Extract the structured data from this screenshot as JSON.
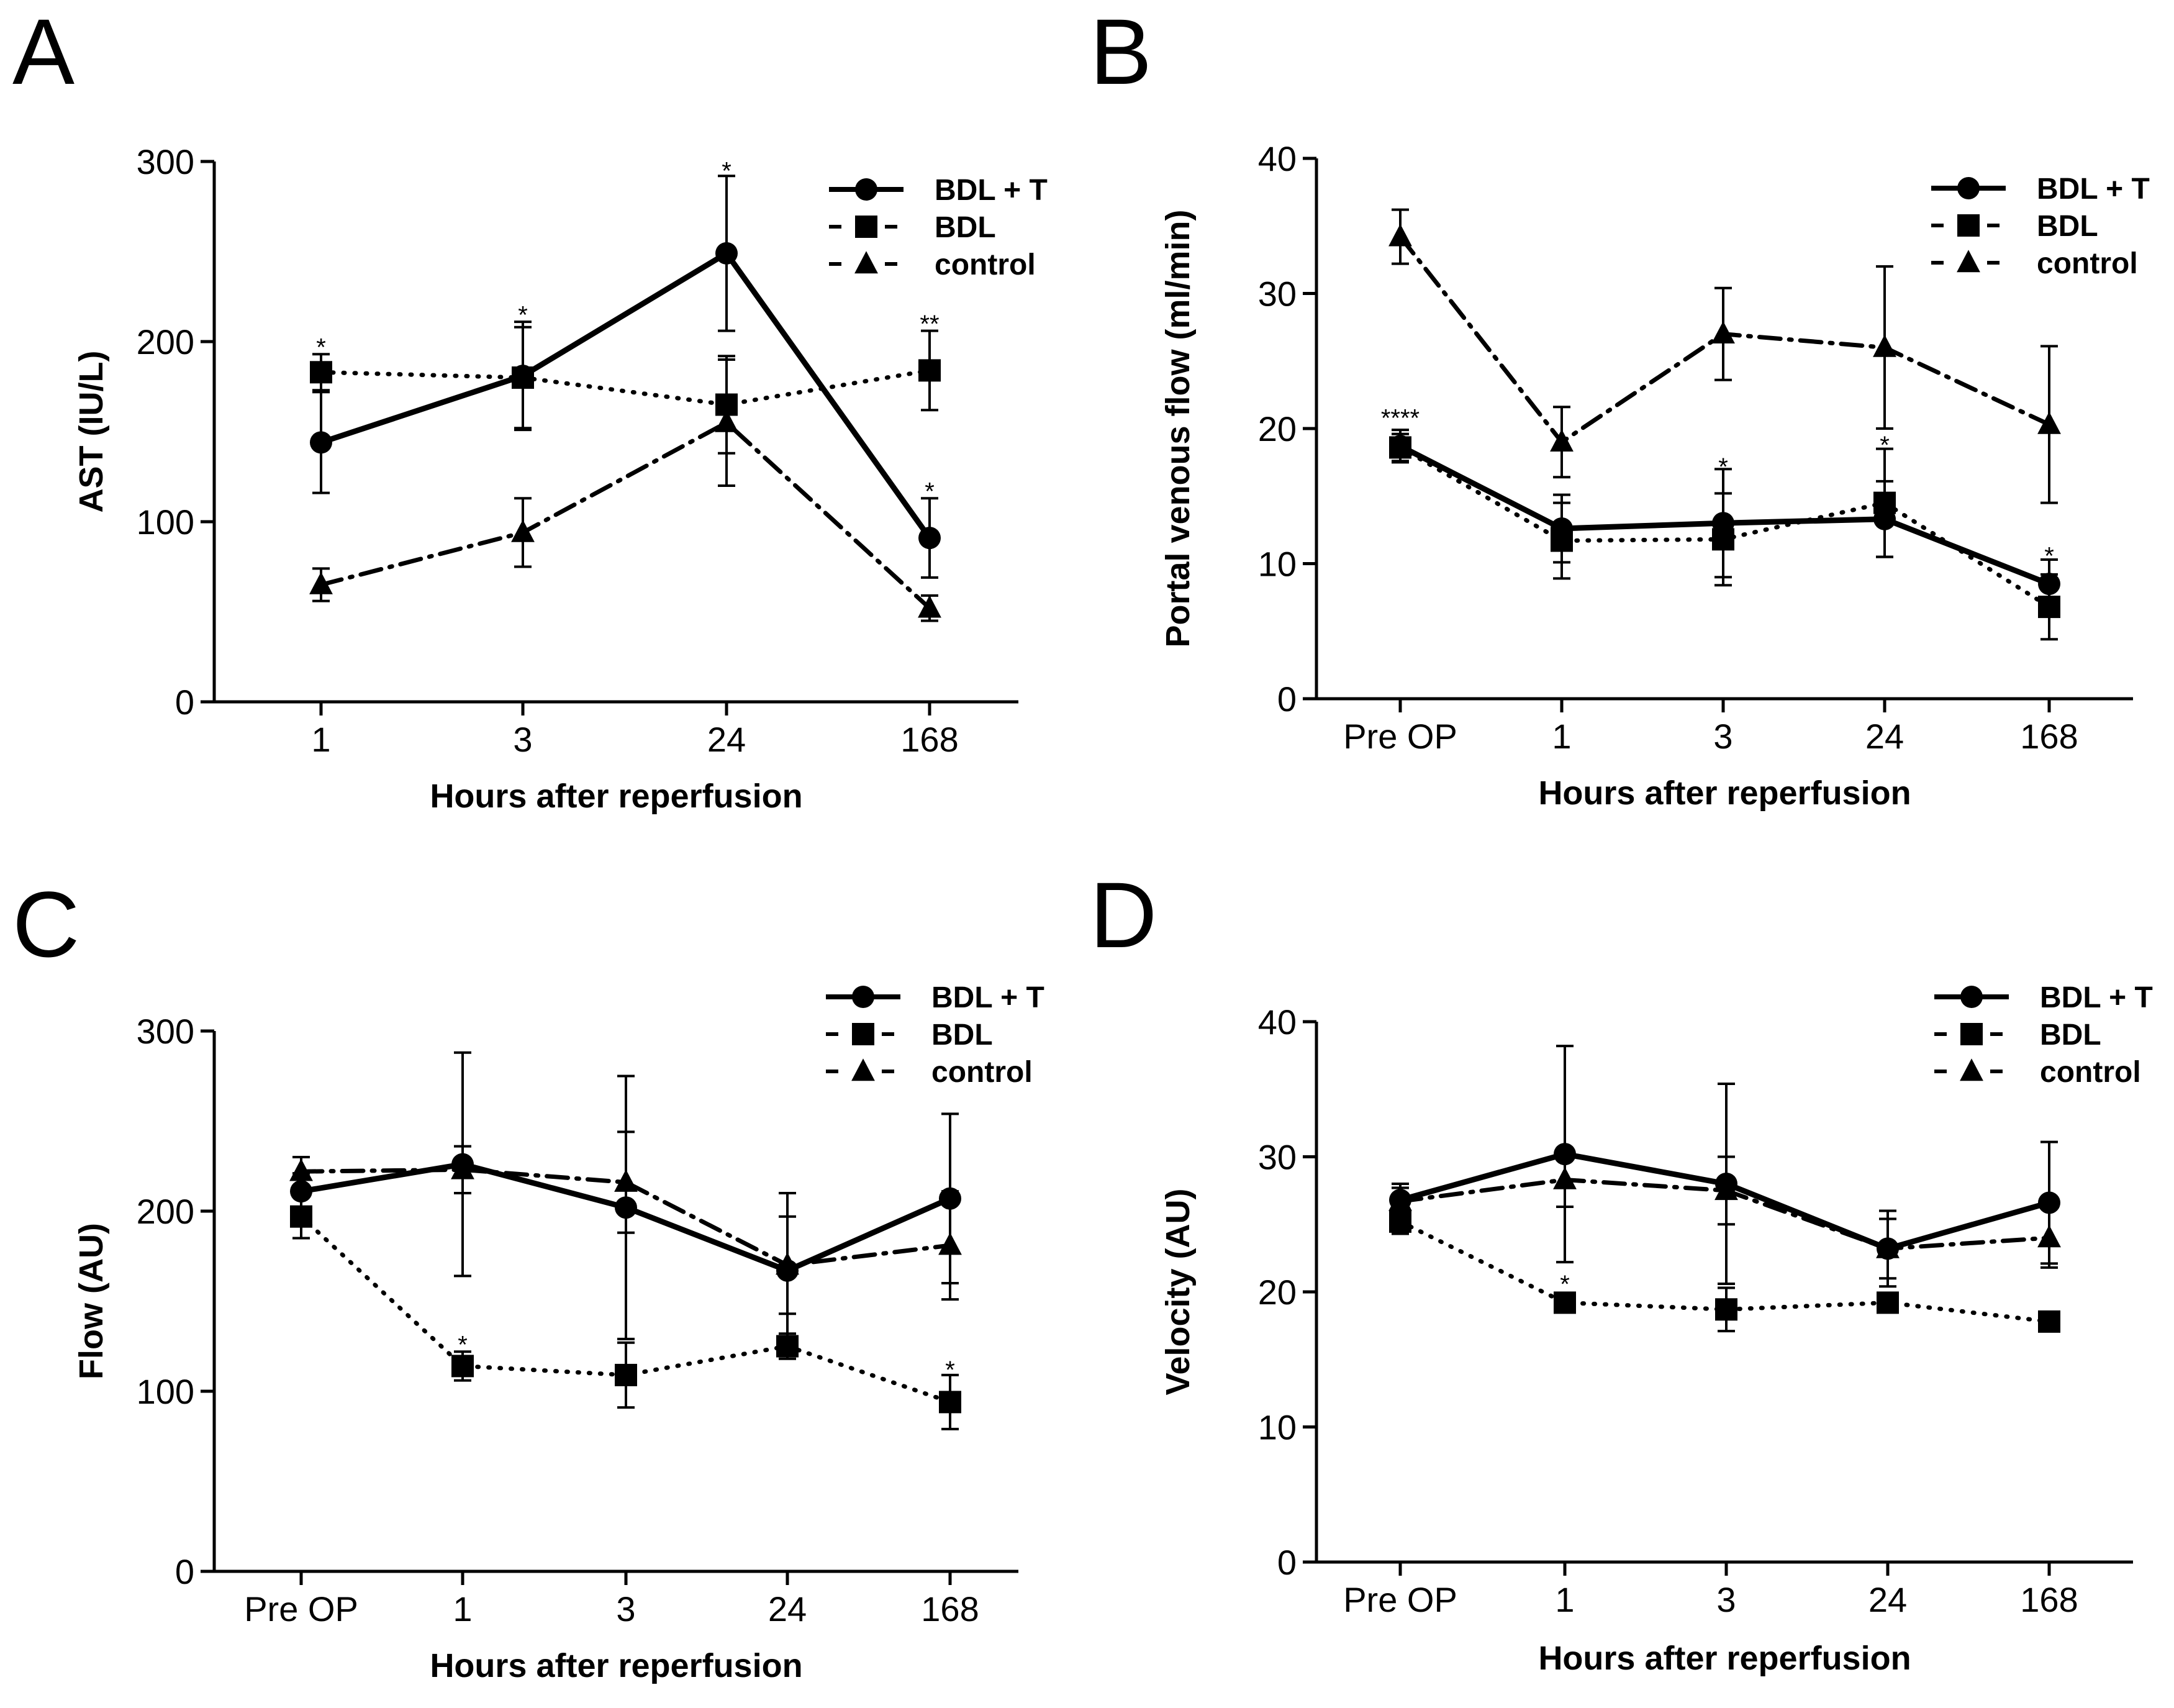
{
  "chart_data": [
    {
      "panel": "A",
      "type": "line",
      "ylabel": "AST (IU/L)",
      "xlabel": "Hours after reperfusion",
      "categories": [
        "1",
        "3",
        "24",
        "168"
      ],
      "ylim": [
        0,
        300
      ],
      "yticks": [
        0,
        100,
        200,
        300
      ],
      "legend_position": "top-right",
      "series": [
        {
          "name": "BDL + T",
          "marker": "circle",
          "line": "solid",
          "values": [
            144,
            181,
            249,
            91
          ],
          "errors": [
            28,
            30,
            43,
            22
          ]
        },
        {
          "name": "BDL",
          "marker": "square",
          "line": "dotted",
          "values": [
            183,
            180,
            165,
            184
          ],
          "errors": [
            10,
            28,
            27,
            22
          ]
        },
        {
          "name": "control",
          "marker": "triangle",
          "line": "dashdot",
          "values": [
            65,
            94,
            155,
            52
          ],
          "errors": [
            9,
            19,
            35,
            7
          ]
        }
      ],
      "annotations": [
        {
          "category": "1",
          "value": 197,
          "text": "*"
        },
        {
          "category": "3",
          "value": 215,
          "text": "*"
        },
        {
          "category": "24",
          "value": 295,
          "text": "*"
        },
        {
          "category": "168",
          "value": 210,
          "text": "**"
        },
        {
          "category": "168",
          "value": 117,
          "text": "*"
        }
      ]
    },
    {
      "panel": "B",
      "type": "line",
      "ylabel": "Portal venous flow (ml/min)",
      "xlabel": "Hours after reperfusion",
      "categories": [
        "Pre OP",
        "1",
        "3",
        "24",
        "168"
      ],
      "ylim": [
        0,
        40
      ],
      "yticks": [
        0,
        10,
        20,
        30,
        40
      ],
      "legend_position": "top-right",
      "series": [
        {
          "name": "BDL + T",
          "marker": "circle",
          "line": "solid",
          "values": [
            18.7,
            12.6,
            13.0,
            13.3,
            8.5
          ],
          "errors": [
            1.2,
            2.5,
            4.0,
            2.8,
            1.8
          ]
        },
        {
          "name": "BDL",
          "marker": "square",
          "line": "dotted",
          "values": [
            18.6,
            11.7,
            11.8,
            14.5,
            6.8
          ],
          "errors": [
            1.0,
            2.8,
            3.4,
            4.0,
            2.4
          ]
        },
        {
          "name": "control",
          "marker": "triangle",
          "line": "dashdot",
          "values": [
            34.2,
            19.0,
            27.0,
            26.0,
            20.3
          ],
          "errors": [
            2.0,
            2.6,
            3.4,
            6.0,
            5.8
          ]
        }
      ],
      "annotations": [
        {
          "category": "Pre OP",
          "value": 20.8,
          "text": "****"
        },
        {
          "category": "3",
          "value": 17.2,
          "text": "*"
        },
        {
          "category": "24",
          "value": 18.8,
          "text": "*"
        },
        {
          "category": "168",
          "value": 10.6,
          "text": "*"
        }
      ]
    },
    {
      "panel": "C",
      "type": "line",
      "ylabel": "Flow (AU)",
      "xlabel": "Hours after reperfusion",
      "categories": [
        "Pre OP",
        "1",
        "3",
        "24",
        "168"
      ],
      "ylim": [
        0,
        300
      ],
      "yticks": [
        0,
        100,
        200,
        300
      ],
      "legend_position": "top-right",
      "series": [
        {
          "name": "BDL + T",
          "marker": "circle",
          "line": "solid",
          "values": [
            211,
            226,
            202,
            167,
            207
          ],
          "errors": [
            10,
            62,
            73,
            43,
            47
          ]
        },
        {
          "name": "BDL",
          "marker": "square",
          "line": "dotted",
          "values": [
            197,
            114,
            109,
            125,
            94
          ],
          "errors": [
            12,
            8,
            18,
            7,
            15
          ]
        },
        {
          "name": "control",
          "marker": "triangle",
          "line": "dashdot",
          "values": [
            222,
            223,
            216,
            170,
            181
          ],
          "errors": [
            8,
            13,
            28,
            27,
            30
          ]
        }
      ],
      "annotations": [
        {
          "category": "1",
          "value": 126,
          "text": "*"
        },
        {
          "category": "168",
          "value": 112,
          "text": "*"
        }
      ]
    },
    {
      "panel": "D",
      "type": "line",
      "ylabel": "Velocity (AU)",
      "xlabel": "Hours after reperfusion",
      "categories": [
        "Pre OP",
        "1",
        "3",
        "24",
        "168"
      ],
      "ylim": [
        0,
        40
      ],
      "yticks": [
        0,
        10,
        20,
        30,
        40
      ],
      "legend_position": "top-right",
      "series": [
        {
          "name": "BDL + T",
          "marker": "circle",
          "line": "solid",
          "values": [
            26.8,
            30.2,
            28.0,
            23.2,
            26.6
          ],
          "errors": [
            1.2,
            8.0,
            7.4,
            2.8,
            4.5
          ]
        },
        {
          "name": "BDL",
          "marker": "square",
          "line": "dotted",
          "values": [
            25.2,
            19.2,
            18.7,
            19.2,
            17.8
          ],
          "errors": [
            0.9,
            0.7,
            1.6,
            0.6,
            0.5
          ]
        },
        {
          "name": "control",
          "marker": "triangle",
          "line": "dashdot",
          "values": [
            26.7,
            28.3,
            27.5,
            23.2,
            24.0
          ],
          "errors": [
            1.0,
            2.0,
            2.5,
            2.2,
            2.2
          ]
        }
      ],
      "annotations": [
        {
          "category": "1",
          "value": 20.6,
          "text": "*"
        }
      ]
    }
  ]
}
